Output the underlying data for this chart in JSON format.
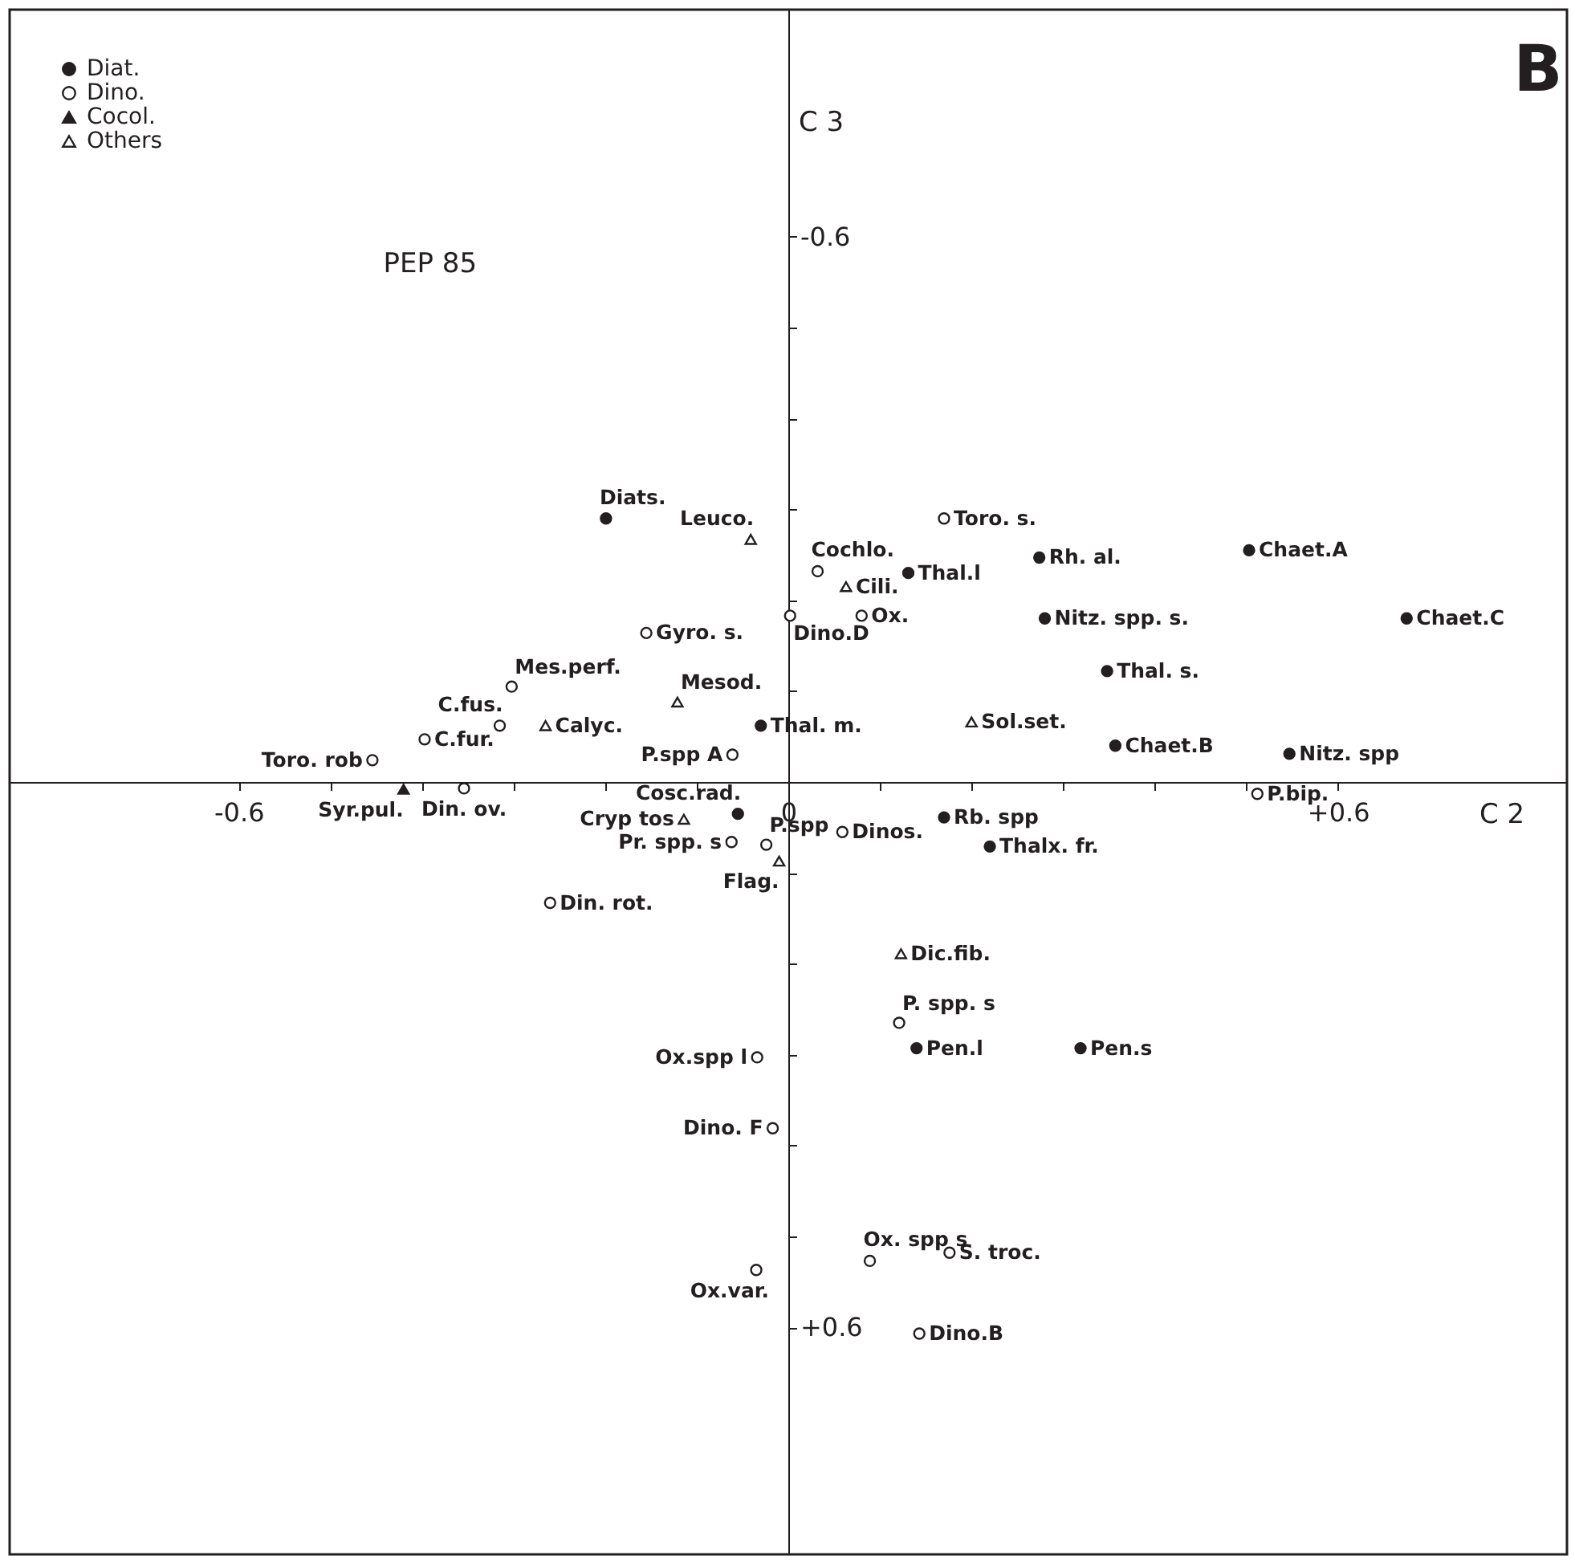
{
  "chart_data": {
    "type": "scatter",
    "xlabel": "C 2",
    "ylabel": "C 3",
    "annotations": [
      "PEP 85",
      "B"
    ],
    "xlim": [
      -0.85,
      0.85
    ],
    "ylim": [
      0.85,
      -0.85
    ],
    "xticks": [
      {
        "value": -0.6,
        "label": "-0.6"
      },
      {
        "value": -0.5,
        "label": null
      },
      {
        "value": -0.4,
        "label": null
      },
      {
        "value": -0.3,
        "label": null
      },
      {
        "value": -0.2,
        "label": null
      },
      {
        "value": -0.1,
        "label": null
      },
      {
        "value": 0,
        "label": "0"
      },
      {
        "value": 0.1,
        "label": null
      },
      {
        "value": 0.2,
        "label": null
      },
      {
        "value": 0.3,
        "label": null
      },
      {
        "value": 0.4,
        "label": null
      },
      {
        "value": 0.5,
        "label": null
      },
      {
        "value": 0.6,
        "label": "+0.6"
      }
    ],
    "yticks": [
      {
        "value": -0.6,
        "label": "-0.6"
      },
      {
        "value": -0.5,
        "label": null
      },
      {
        "value": -0.4,
        "label": null
      },
      {
        "value": -0.3,
        "label": null
      },
      {
        "value": -0.2,
        "label": null
      },
      {
        "value": -0.1,
        "label": null
      },
      {
        "value": 0,
        "label": null
      },
      {
        "value": 0.1,
        "label": null
      },
      {
        "value": 0.2,
        "label": null
      },
      {
        "value": 0.3,
        "label": null
      },
      {
        "value": 0.4,
        "label": null
      },
      {
        "value": 0.5,
        "label": null
      },
      {
        "value": 0.6,
        "label": "+0.6"
      }
    ],
    "grid": false,
    "legend": "top left",
    "series": [
      {
        "name": "Diat.",
        "color": "#231f20",
        "marker": "circle",
        "x": [
          -0.199,
          -0.03,
          -0.055,
          0.131,
          0.274,
          0.503,
          0.28,
          0.675,
          0.348,
          0.357,
          0.547,
          0.17,
          0.22,
          0.14,
          0.319
        ],
        "values": [
          -0.29,
          -0.062,
          0.035,
          -0.23,
          -0.247,
          -0.255,
          -0.18,
          -0.18,
          -0.122,
          -0.04,
          -0.031,
          0.039,
          0.071,
          0.293,
          0.293
        ],
        "value_labels": [
          "Diats.",
          "Thal. m.",
          "Cosc.rad.",
          "Thal.l",
          "Rh. al.",
          "Chaet.A",
          "Nitz. spp. s.",
          "Chaet.C",
          "Thal. s.",
          "Chaet.B",
          "Nitz. spp",
          "Rb. spp",
          "Thalx. fr.",
          "Pen.l",
          "Pen.s"
        ]
      },
      {
        "name": "Dino.",
        "color": "#ffffff",
        "marker": "circle",
        "x": [
          -0.155,
          -0.302,
          -0.315,
          -0.454,
          -0.397,
          -0.061,
          -0.354,
          -0.062,
          -0.024,
          -0.26,
          0.17,
          0.032,
          0.002,
          0.08,
          0.512,
          0.059,
          0.121,
          -0.034,
          -0.017,
          0.089,
          0.176,
          -0.035,
          0.143
        ],
        "values": [
          -0.164,
          -0.105,
          -0.062,
          -0.024,
          -0.047,
          -0.03,
          0.007,
          0.066,
          0.069,
          0.133,
          -0.29,
          -0.232,
          -0.183,
          -0.183,
          0.013,
          0.055,
          0.265,
          0.303,
          0.381,
          0.527,
          0.518,
          0.537,
          0.607
        ],
        "value_labels": [
          "Gyro. s.",
          "Mes.perf.",
          "C.fus.",
          "Toro. rob",
          "C.fur.",
          "P.spp A",
          "Din. ov.",
          "Pr. spp. s",
          "P.spp",
          "Din. rot.",
          "Toro. s.",
          "Cochlo.",
          "Dino.D",
          "Ox.",
          "P.bip.",
          "Dinos.",
          "P. spp. s",
          "Ox.spp l",
          "Dino. F",
          "Ox. spp s",
          "S. troc.",
          "Ox.var.",
          "Dino.B"
        ]
      },
      {
        "name": "Cocol.",
        "color": "#231f20",
        "marker": "triangle",
        "x": [
          -0.42
        ],
        "values": [
          0.008
        ],
        "value_labels": [
          "Syr.pul."
        ]
      },
      {
        "name": "Others",
        "color": "#ffffff",
        "marker": "triangle",
        "x": [
          -0.041,
          -0.121,
          -0.265,
          -0.114,
          -0.01,
          0.063,
          0.2,
          0.123
        ],
        "values": [
          -0.267,
          -0.088,
          -0.062,
          0.041,
          0.087,
          -0.215,
          -0.066,
          0.189
        ],
        "value_labels": [
          "Leuco.",
          "Mesod.",
          "Calyc.",
          "Cryp tos",
          "Flag.",
          "Cili.",
          "Sol.set.",
          "Dic.fib."
        ]
      }
    ]
  }
}
